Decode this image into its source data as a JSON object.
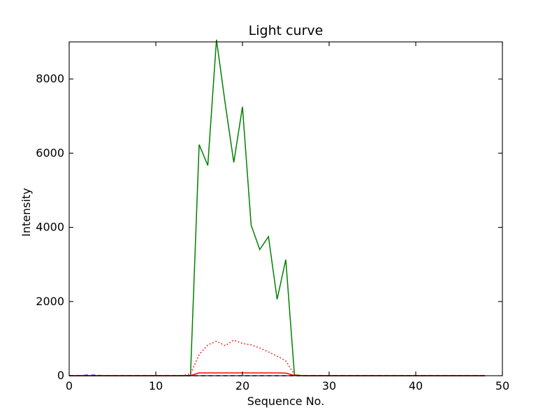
{
  "chart_data": {
    "type": "line",
    "title": "Light curve",
    "xlabel": "Sequence No.",
    "ylabel": "Intensity",
    "xlim": [
      0,
      50
    ],
    "ylim": [
      0,
      9000
    ],
    "x_ticks": [
      0,
      10,
      20,
      30,
      40,
      50
    ],
    "y_ticks": [
      0,
      2000,
      4000,
      6000,
      8000
    ],
    "grid": false,
    "legend": "none",
    "frame_color": "#000000",
    "x": [
      0,
      1,
      2,
      3,
      4,
      5,
      6,
      7,
      8,
      9,
      10,
      11,
      12,
      13,
      14,
      15,
      16,
      17,
      18,
      19,
      20,
      21,
      22,
      23,
      24,
      25,
      26,
      27,
      28,
      29,
      30,
      31,
      32,
      33,
      34,
      35,
      36,
      37,
      38,
      39,
      40,
      41,
      42,
      43,
      44,
      45,
      46,
      47,
      48
    ],
    "series": [
      {
        "name": "green-solid",
        "color": "#008000",
        "line_style": "solid",
        "values": [
          0,
          0,
          0,
          0,
          0,
          0,
          0,
          0,
          0,
          0,
          0,
          0,
          0,
          0,
          0,
          6230,
          5670,
          9060,
          7350,
          5750,
          7250,
          4060,
          3400,
          3750,
          2060,
          3130,
          20,
          0,
          0,
          0,
          0,
          0,
          0,
          0,
          0,
          0,
          0,
          0,
          0,
          0,
          0,
          0,
          0,
          0,
          0,
          0,
          0,
          0,
          0
        ]
      },
      {
        "name": "red-dotted",
        "color": "#ff0000",
        "line_style": "dotted",
        "values": [
          0,
          0,
          0,
          0,
          0,
          0,
          0,
          0,
          0,
          0,
          0,
          0,
          0,
          0,
          50,
          570,
          830,
          930,
          810,
          960,
          870,
          830,
          750,
          640,
          530,
          400,
          30,
          0,
          0,
          0,
          0,
          0,
          0,
          0,
          0,
          0,
          0,
          0,
          0,
          0,
          0,
          0,
          0,
          0,
          0,
          0,
          0,
          0,
          0
        ]
      },
      {
        "name": "red-solid",
        "color": "#ff0000",
        "line_style": "solid",
        "values": [
          0,
          0,
          0,
          0,
          0,
          0,
          0,
          0,
          0,
          0,
          0,
          0,
          0,
          0,
          5,
          75,
          75,
          75,
          75,
          75,
          75,
          75,
          75,
          75,
          75,
          70,
          5,
          0,
          0,
          0,
          0,
          0,
          0,
          0,
          0,
          0,
          0,
          0,
          0,
          0,
          0,
          0,
          0,
          0,
          0,
          0,
          0,
          0,
          0
        ]
      },
      {
        "name": "blue-dashed",
        "color": "#0000ff",
        "line_style": "dashed",
        "values": [
          0,
          0,
          15,
          15,
          0,
          0,
          0,
          0,
          0,
          0,
          0,
          0,
          0,
          0,
          0,
          0,
          0,
          0,
          0,
          0,
          0,
          0,
          0,
          0,
          0,
          0,
          0,
          0,
          0,
          0,
          0,
          0,
          0,
          0,
          0,
          0,
          0,
          0,
          0,
          0,
          0,
          0,
          0,
          0,
          0,
          0,
          0,
          0,
          0
        ]
      }
    ]
  }
}
